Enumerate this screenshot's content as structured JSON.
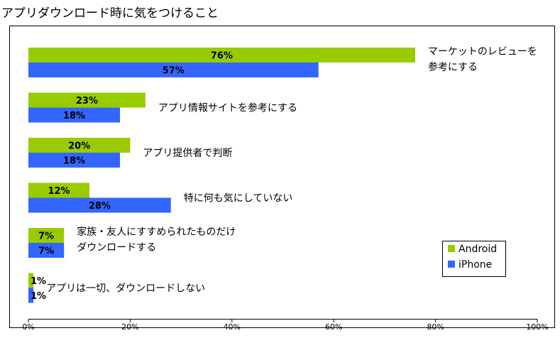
{
  "chart_data": {
    "type": "bar",
    "orientation": "horizontal",
    "title": "アプリダウンロード時に気をつけること",
    "categories": [
      [
        "マーケットのレビューを",
        "参考にする"
      ],
      [
        "アプリ情報サイトを参考にする"
      ],
      [
        "アプリ提供者で判断"
      ],
      [
        "特に何も気にしていない"
      ],
      [
        "家族・友人にすすめられたものだけ",
        "ダウンロードする"
      ],
      [
        "アプリは一切、ダウンロードしない"
      ]
    ],
    "series": [
      {
        "name": "Android",
        "color": "#99cc00",
        "values": [
          76,
          23,
          20,
          12,
          7,
          1
        ],
        "labels": [
          "76%",
          "23%",
          "20%",
          "12%",
          "7%",
          "1%"
        ]
      },
      {
        "name": "iPhone",
        "color": "#3366ff",
        "values": [
          57,
          18,
          18,
          28,
          7,
          1
        ],
        "labels": [
          "57%",
          "18%",
          "18%",
          "28%",
          "7%",
          "1%"
        ]
      }
    ],
    "xlim": [
      0,
      100
    ],
    "ticks": [
      0,
      20,
      40,
      60,
      80,
      100
    ],
    "tick_labels": [
      "0%",
      "20%",
      "40%",
      "60%",
      "80%",
      "100%"
    ],
    "grid": false,
    "legend_position": "bottom-right"
  }
}
